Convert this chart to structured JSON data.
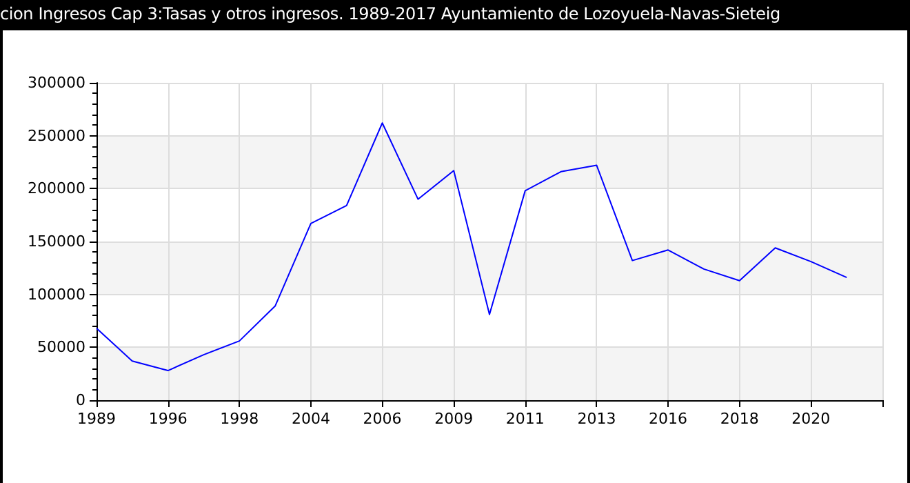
{
  "chart_data": {
    "type": "line",
    "title": "cion Ingresos Cap 3:Tasas y otros ingresos. 1989-2017 Ayuntamiento de Lozoyuela-Navas-Sieteig",
    "categories": [
      "1989",
      null,
      "1996",
      null,
      "1998",
      null,
      "2004",
      null,
      "2006",
      null,
      "2009",
      null,
      "2011",
      null,
      "2013",
      null,
      "2016",
      null,
      "2018",
      null,
      "2020",
      null,
      null
    ],
    "series": [
      {
        "color": "#0000ff",
        "values": [
          68000,
          37000,
          28000,
          43000,
          56000,
          89000,
          167000,
          184000,
          262000,
          190000,
          217000,
          81000,
          198000,
          216000,
          222000,
          132000,
          142000,
          124000,
          113000,
          144000,
          131000,
          116000,
          null
        ]
      }
    ],
    "ylim": [
      0,
      300000
    ],
    "yticks": [
      0,
      50000,
      100000,
      150000,
      200000,
      250000,
      300000
    ],
    "grid": true,
    "marker": "none",
    "line_style": "solid"
  }
}
